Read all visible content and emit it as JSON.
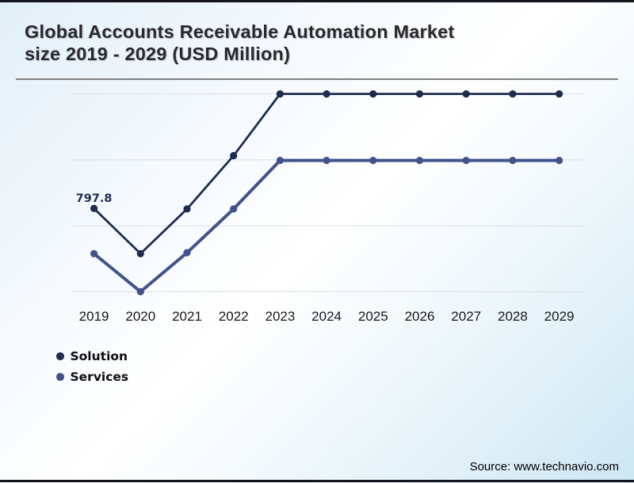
{
  "header": {
    "title_line1": "Global Accounts Receivable Automation Market",
    "title_line2": "size 2019 - 2029 (USD Million)"
  },
  "footer": {
    "source_text": "Source: www.technavio.com"
  },
  "colors": {
    "solution": "#1c2b4e",
    "services": "#41538a",
    "gridline": "#dbdfe3",
    "border": "#14141d",
    "title_text": "#28282e",
    "axis_label": "#17171a",
    "point_label": "#1e2d50"
  },
  "chart_data": {
    "type": "line",
    "title": "Global Accounts Receivable Automation Market size 2019 - 2029 (USD Million)",
    "x_categories": [
      "2019",
      "2020",
      "2021",
      "2022",
      "2023",
      "2024",
      "2025",
      "2026",
      "2027",
      "2028",
      "2029"
    ],
    "series": [
      {
        "name": "Solution",
        "color": "#1c2b4e",
        "stroke_width": 2.8,
        "values": [
          797.8,
          560,
          795,
          1075,
          1400,
          1400,
          1400,
          1400,
          1400,
          1400,
          1400
        ]
      },
      {
        "name": "Services",
        "color": "#41538a",
        "stroke_width": 4,
        "values": [
          560,
          360,
          565,
          795,
          1050,
          1050,
          1050,
          1050,
          1050,
          1050,
          1050
        ]
      }
    ],
    "values_estimated": true,
    "point_labels": [
      {
        "series": "Solution",
        "category": "2019",
        "text": "797.8"
      }
    ],
    "ylim": [
      270,
      1400
    ],
    "xlabel": "",
    "ylabel": "",
    "grid": "horizontal",
    "gridline_count": 4,
    "legend_position": "bottom-left",
    "markers": "filled-circle"
  }
}
